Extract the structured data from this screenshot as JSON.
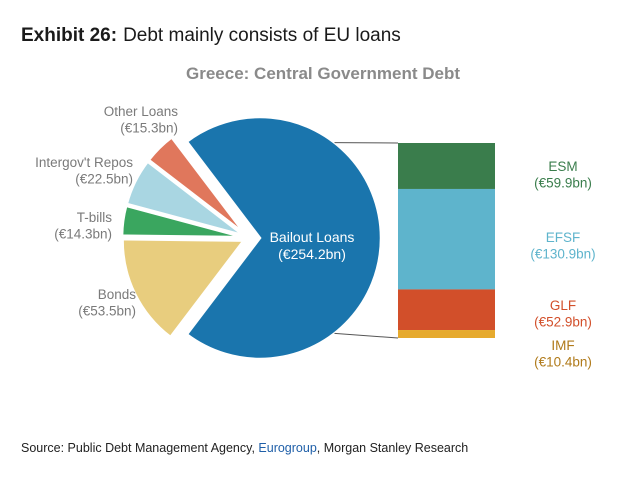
{
  "exhibit": {
    "number": "Exhibit 26:",
    "title": "Debt mainly consists of EU loans"
  },
  "source": {
    "prefix": "Source: Public Debt Management Agency, ",
    "link": "Eurogroup",
    "suffix": ", Morgan Stanley Research"
  },
  "colors": {
    "bailout": "#1a75ad",
    "bonds": "#e8cd7e",
    "tbills": "#3aa65f",
    "repos": "#a9d6e2",
    "other": "#e0775c",
    "esm": "#3a7d4c",
    "efsf": "#5eb4cc",
    "glf": "#d24f2a",
    "imf": "#e6aa2e",
    "esm_text": "#3a7d4c",
    "efsf_text": "#5eb4cc",
    "glf_text": "#d24f2a",
    "imf_text": "#b07a1a",
    "label_text": "#7a7a7a",
    "title_text": "#8a8a8a"
  },
  "chart_data": [
    {
      "type": "pie",
      "title": "Greece: Central Government Debt",
      "slices": [
        {
          "name": "Bailout Loans",
          "value_label": "(€254.2bn)",
          "value": 254.2,
          "color_key": "bailout",
          "exploded": true
        },
        {
          "name": "Bonds",
          "value_label": "(€53.5bn)",
          "value": 53.5,
          "color_key": "bonds"
        },
        {
          "name": "T-bills",
          "value_label": "(€14.3bn)",
          "value": 14.3,
          "color_key": "tbills"
        },
        {
          "name": "Intergov't Repos",
          "value_label": "(€22.5bn)",
          "value": 22.5,
          "color_key": "repos"
        },
        {
          "name": "Other Loans",
          "value_label": "(€15.3bn)",
          "value": 15.3,
          "color_key": "other"
        }
      ]
    },
    {
      "type": "bar",
      "stacked": true,
      "parent": "Bailout Loans",
      "segments": [
        {
          "name": "ESM",
          "value_label": "(€59.9bn)",
          "value": 59.9,
          "color_key": "esm"
        },
        {
          "name": "EFSF",
          "value_label": "(€130.9bn)",
          "value": 130.9,
          "color_key": "efsf"
        },
        {
          "name": "GLF",
          "value_label": "(€52.9bn)",
          "value": 52.9,
          "color_key": "glf"
        },
        {
          "name": "IMF",
          "value_label": "(€10.4bn)",
          "value": 10.4,
          "color_key": "imf"
        }
      ]
    }
  ]
}
